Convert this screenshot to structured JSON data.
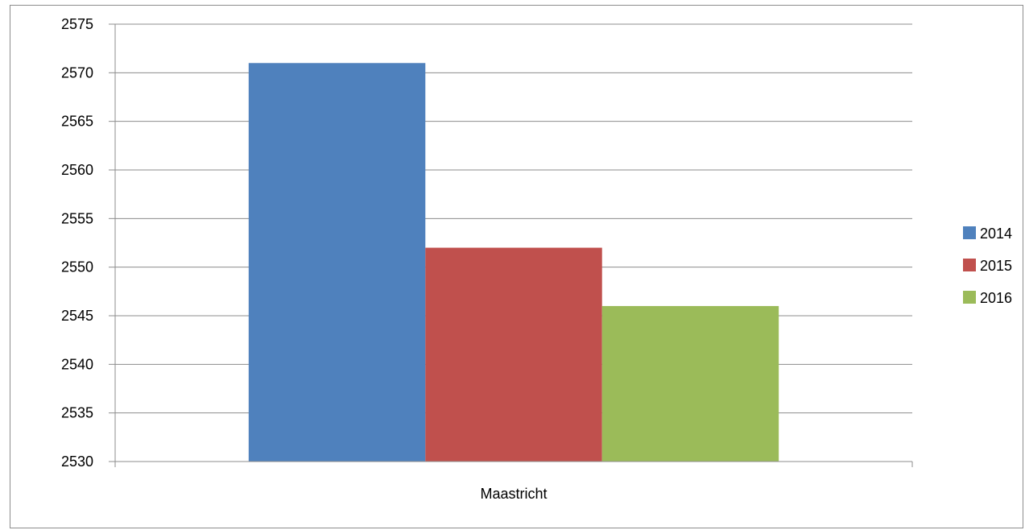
{
  "chart_data": {
    "type": "bar",
    "categories": [
      "Maastricht"
    ],
    "series": [
      {
        "name": "2014",
        "values": [
          2571
        ],
        "color": "#4F81BD"
      },
      {
        "name": "2015",
        "values": [
          2552
        ],
        "color": "#C0504D"
      },
      {
        "name": "2016",
        "values": [
          2546
        ],
        "color": "#9BBB59"
      }
    ],
    "ylim": [
      2530,
      2575
    ],
    "y_ticks": [
      2530,
      2535,
      2540,
      2545,
      2550,
      2555,
      2560,
      2565,
      2570,
      2575
    ],
    "y_tick_labels": [
      "2530",
      "2535",
      "2540",
      "2545",
      "2550",
      "2555",
      "2560",
      "2565",
      "2570",
      "2575"
    ],
    "grid": true,
    "legend_position": "right",
    "title": "",
    "xlabel": "",
    "ylabel": ""
  }
}
